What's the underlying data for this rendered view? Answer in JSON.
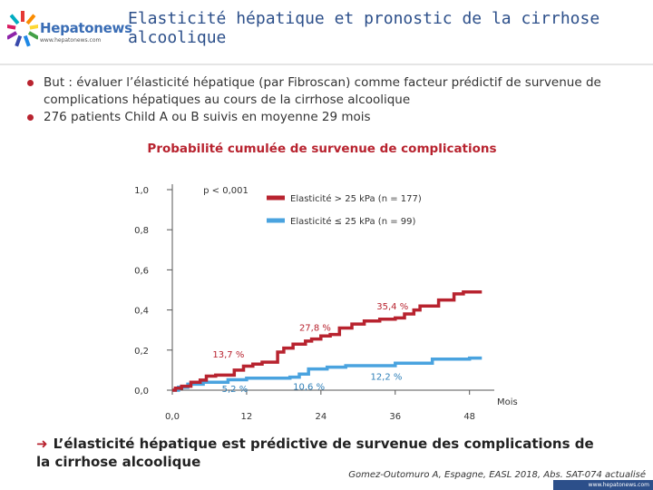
{
  "header": {
    "logo_name": "Hepatonews",
    "logo_url": "www.hepatonews.com",
    "title": "Elasticité hépatique et pronostic de la cirrhose alcoolique"
  },
  "bullets": [
    "But : évaluer l’élasticité hépatique (par Fibroscan) comme facteur prédictif de survenue de complications hépatiques au cours de la cirrhose alcoolique",
    "276 patients Child A ou B suivis en moyenne 29 mois"
  ],
  "chart_data": {
    "type": "line",
    "title": "Probabilité cumulée de survenue de complications",
    "xlabel": "Mois",
    "ylabel": "",
    "xlim": [
      0,
      52
    ],
    "ylim": [
      0,
      1
    ],
    "x_ticks": [
      0,
      12,
      24,
      36,
      48
    ],
    "x_tick_labels": [
      "0,0",
      "12",
      "24",
      "36",
      "48"
    ],
    "y_ticks": [
      0,
      0.2,
      0.4,
      0.6,
      0.8,
      1.0
    ],
    "y_tick_labels": [
      "0,0",
      "0,2",
      "0,4",
      "0,6",
      "0,8",
      "1,0"
    ],
    "grid": false,
    "legend_position": "top-right",
    "series": [
      {
        "name": "Elasticité > 25 kPa (n = 177)",
        "color": "#b8232f",
        "points": [
          [
            0,
            0
          ],
          [
            0.5,
            0
          ],
          [
            0.5,
            0.01
          ],
          [
            1.5,
            0.01
          ],
          [
            1.5,
            0.02
          ],
          [
            3,
            0.02
          ],
          [
            3,
            0.04
          ],
          [
            4.5,
            0.04
          ],
          [
            4.5,
            0.05
          ],
          [
            5.5,
            0.05
          ],
          [
            5.5,
            0.07
          ],
          [
            7,
            0.07
          ],
          [
            7,
            0.075
          ],
          [
            10,
            0.075
          ],
          [
            10,
            0.1
          ],
          [
            11.5,
            0.1
          ],
          [
            11.5,
            0.12
          ],
          [
            13,
            0.12
          ],
          [
            13,
            0.13
          ],
          [
            14.5,
            0.13
          ],
          [
            14.5,
            0.14
          ],
          [
            17,
            0.14
          ],
          [
            17,
            0.19
          ],
          [
            18,
            0.19
          ],
          [
            18,
            0.21
          ],
          [
            19.5,
            0.21
          ],
          [
            19.5,
            0.23
          ],
          [
            21.5,
            0.23
          ],
          [
            21.5,
            0.245
          ],
          [
            22.5,
            0.245
          ],
          [
            22.5,
            0.255
          ],
          [
            24,
            0.255
          ],
          [
            24,
            0.27
          ],
          [
            25.5,
            0.27
          ],
          [
            25.5,
            0.278
          ],
          [
            27,
            0.278
          ],
          [
            27,
            0.31
          ],
          [
            29,
            0.31
          ],
          [
            29,
            0.33
          ],
          [
            31,
            0.33
          ],
          [
            31,
            0.345
          ],
          [
            33.5,
            0.345
          ],
          [
            33.5,
            0.354
          ],
          [
            36,
            0.354
          ],
          [
            36,
            0.36
          ],
          [
            37.5,
            0.36
          ],
          [
            37.5,
            0.38
          ],
          [
            39,
            0.38
          ],
          [
            39,
            0.4
          ],
          [
            40,
            0.4
          ],
          [
            40,
            0.42
          ],
          [
            43,
            0.42
          ],
          [
            43,
            0.45
          ],
          [
            45.5,
            0.45
          ],
          [
            45.5,
            0.48
          ],
          [
            47,
            0.48
          ],
          [
            47,
            0.49
          ],
          [
            50,
            0.49
          ]
        ]
      },
      {
        "name": "Elasticité ≤ 25 kPa (n = 99)",
        "color": "#4aa3df",
        "points": [
          [
            0,
            0
          ],
          [
            1,
            0
          ],
          [
            1,
            0.015
          ],
          [
            2.5,
            0.015
          ],
          [
            2.5,
            0.03
          ],
          [
            5,
            0.03
          ],
          [
            5,
            0.04
          ],
          [
            9,
            0.04
          ],
          [
            9,
            0.052
          ],
          [
            12,
            0.052
          ],
          [
            12,
            0.06
          ],
          [
            19,
            0.06
          ],
          [
            19,
            0.065
          ],
          [
            20.5,
            0.065
          ],
          [
            20.5,
            0.08
          ],
          [
            22,
            0.08
          ],
          [
            22,
            0.106
          ],
          [
            25,
            0.106
          ],
          [
            25,
            0.115
          ],
          [
            28,
            0.115
          ],
          [
            28,
            0.122
          ],
          [
            36,
            0.122
          ],
          [
            36,
            0.135
          ],
          [
            42,
            0.135
          ],
          [
            42,
            0.155
          ],
          [
            48,
            0.155
          ],
          [
            48,
            0.16
          ],
          [
            50,
            0.16
          ]
        ]
      }
    ],
    "annotations": [
      {
        "text": "p < 0,001",
        "x": 5,
        "y": 1.0
      },
      {
        "text": "35,4 %",
        "x": 33,
        "y": 0.42
      },
      {
        "text": "27,8 %",
        "x": 20.5,
        "y": 0.315
      },
      {
        "text": "13,7 %",
        "x": 6.5,
        "y": 0.18
      },
      {
        "text": "5,2 %",
        "x": 8,
        "y": 0.01
      },
      {
        "text": "10,6 %",
        "x": 19.5,
        "y": 0.02
      },
      {
        "text": "12,2 %",
        "x": 32,
        "y": 0.07
      }
    ]
  },
  "conclusion": "L’élasticité hépatique est prédictive de survenue des complications de la cirrhose alcoolique",
  "citation": "Gomez-Outomuro A, Espagne, EASL 2018, Abs. SAT-074 actualisé",
  "footer_url": "www.hepatonews.com"
}
